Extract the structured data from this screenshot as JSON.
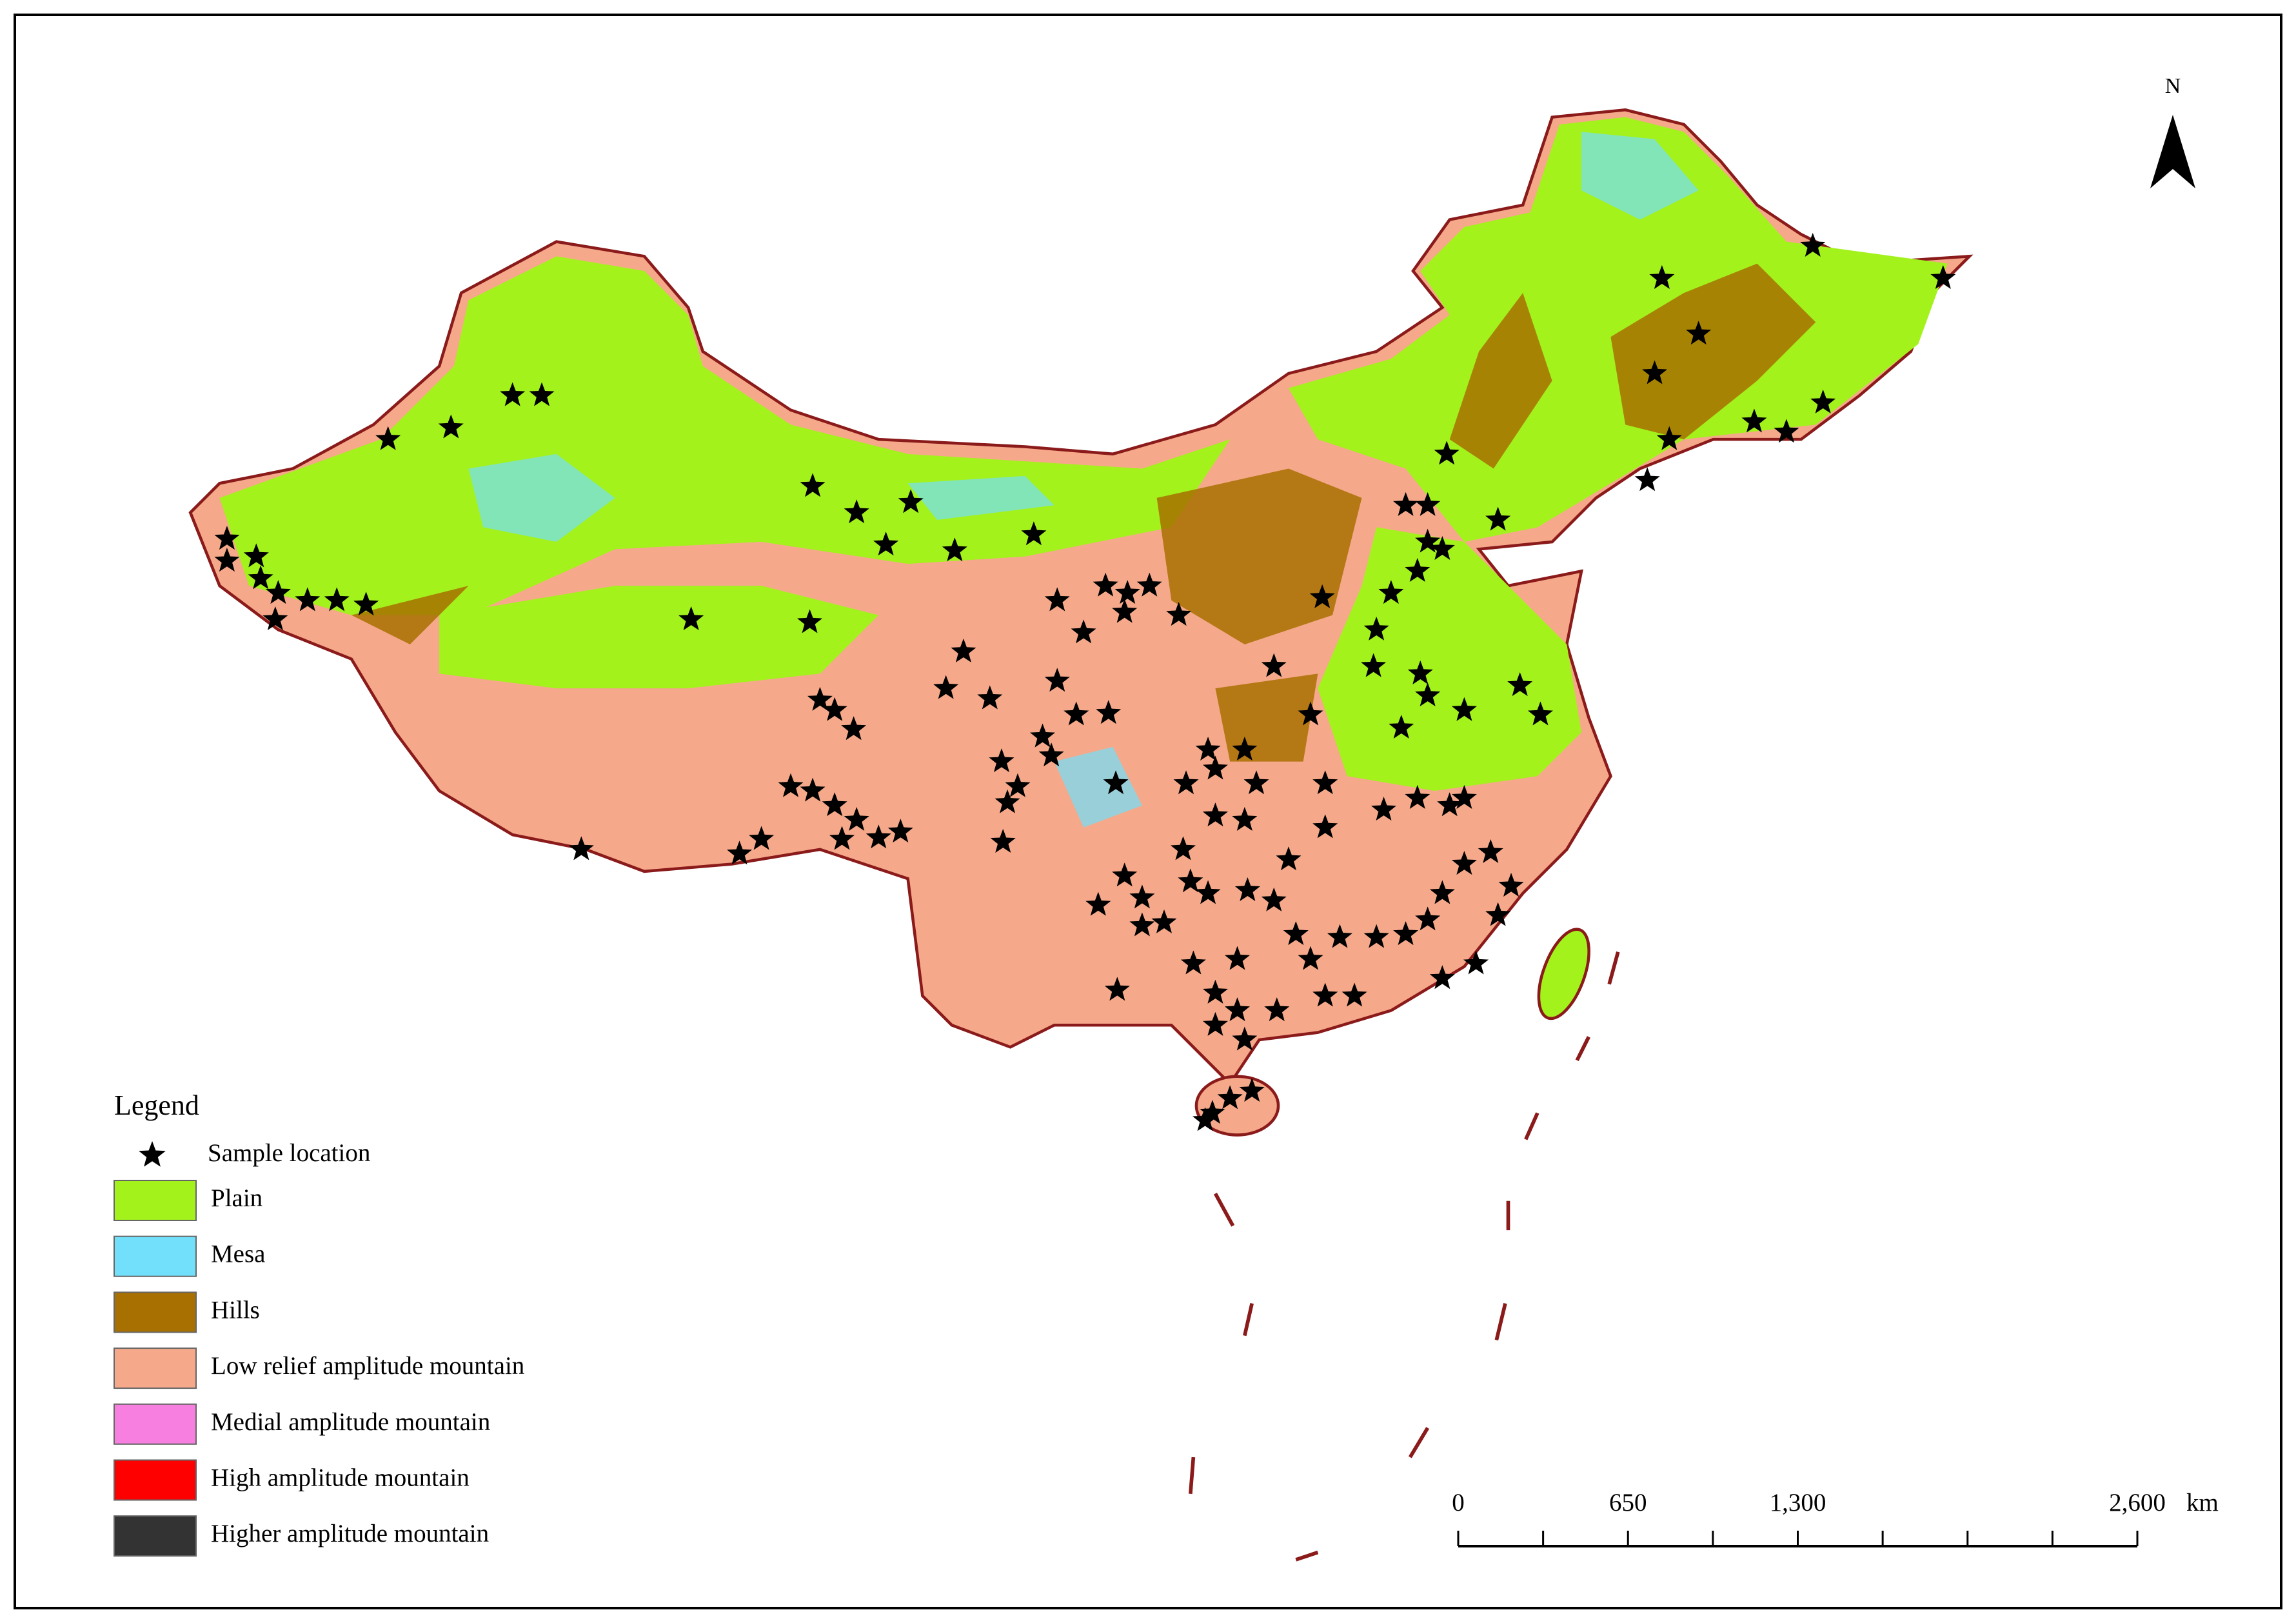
{
  "legend": {
    "title": "Legend",
    "items": [
      {
        "label": "Sample location",
        "color": "#000000"
      },
      {
        "label": "Plain",
        "color": "#a3f21c"
      },
      {
        "label": "Mesa",
        "color": "#72e0fb"
      },
      {
        "label": "Hills",
        "color": "#a87000"
      },
      {
        "label": "Low relief amplitude mountain",
        "color": "#f5a98a"
      },
      {
        "label": "Medial amplitude mountain",
        "color": "#f77fe0"
      },
      {
        "label": "High amplitude mountain",
        "color": "#ff0000"
      },
      {
        "label": "Higher amplitude mountain",
        "color": "#333333"
      }
    ]
  },
  "scale_bar": {
    "ticks": [
      "0",
      "650",
      "1,300",
      "2,600"
    ],
    "unit": "km"
  },
  "north_arrow": {
    "label": "N"
  }
}
